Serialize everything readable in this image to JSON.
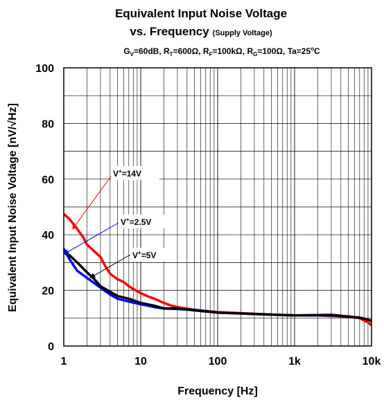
{
  "chart_data": {
    "type": "line",
    "title_line1": "Equivalent Input Noise Voltage",
    "title_line2_main": "vs. Frequency",
    "title_line2_small": "(Supply Voltage)",
    "conditions": [
      {
        "main": "G",
        "sub": "V",
        "rest": "=60dB, "
      },
      {
        "main": "R",
        "sub": "T",
        "rest": "=600Ω, "
      },
      {
        "main": "R",
        "sub": "F",
        "rest": "=100kΩ, "
      },
      {
        "main": "R",
        "sub": "G",
        "rest": "=100Ω, "
      },
      {
        "main": "Ta=25",
        "sup": "o",
        "rest": "C"
      }
    ],
    "xlabel": "Frequency [Hz]",
    "ylabel": "Equivalent Input Noise Voltage [nV/√Hz]",
    "xscale": "log",
    "xlim": [
      1,
      10000
    ],
    "ylim": [
      0,
      100
    ],
    "xticks": [
      {
        "value": 1,
        "label": "1"
      },
      {
        "value": 10,
        "label": "10"
      },
      {
        "value": 100,
        "label": "100"
      },
      {
        "value": 1000,
        "label": "1k"
      },
      {
        "value": 10000,
        "label": "10k"
      }
    ],
    "yticks": [
      {
        "value": 0,
        "label": "0"
      },
      {
        "value": 20,
        "label": "20"
      },
      {
        "value": 40,
        "label": "40"
      },
      {
        "value": 60,
        "label": "60"
      },
      {
        "value": 80,
        "label": "80"
      },
      {
        "value": 100,
        "label": "100"
      }
    ],
    "grid": true,
    "series": [
      {
        "name": "V+=14V",
        "color": "#ff0000",
        "x": [
          1,
          1.2,
          1.5,
          1.8,
          2,
          2.5,
          3,
          3.5,
          4,
          5,
          6,
          7,
          8,
          10,
          12,
          15,
          20,
          25,
          30,
          50,
          100,
          200,
          500,
          1000,
          2000,
          3000,
          5000,
          7000,
          9000,
          10000
        ],
        "y": [
          47.5,
          45.5,
          42,
          39,
          36.5,
          34,
          32,
          28.5,
          26,
          24,
          23,
          21.5,
          20.5,
          19,
          18,
          17,
          15.5,
          14.5,
          14,
          13,
          12.2,
          11.8,
          11.3,
          11,
          11,
          10.8,
          10.5,
          10,
          8.5,
          7.5
        ]
      },
      {
        "name": "V+=2.5V",
        "color": "#0000ff",
        "x": [
          1,
          1.2,
          1.5,
          2,
          3,
          4,
          5,
          7,
          10,
          15,
          20,
          30,
          50,
          100,
          200,
          500,
          1000,
          3000,
          5000,
          7000,
          9000,
          10000
        ],
        "y": [
          35,
          31,
          27,
          24.5,
          21,
          18.5,
          17,
          16,
          15,
          14,
          13.5,
          13.3,
          13,
          12,
          11.7,
          11.3,
          11,
          11,
          10.6,
          10.2,
          9.5,
          9
        ]
      },
      {
        "name": "V+=5V",
        "color": "#000000",
        "x": [
          1,
          1.2,
          1.5,
          2,
          2.5,
          3,
          4,
          5,
          7,
          10,
          15,
          20,
          30,
          50,
          100,
          200,
          500,
          1000,
          3000,
          5000,
          7000,
          9000,
          10000
        ],
        "y": [
          33.5,
          32.5,
          30,
          26.5,
          24,
          21.5,
          19.5,
          18,
          17,
          15.5,
          14.5,
          13.5,
          13.5,
          12.8,
          12,
          11.7,
          11.3,
          11,
          11.2,
          10.6,
          10.2,
          9.5,
          9
        ]
      }
    ],
    "annotations": [
      {
        "base": "V",
        "sup": "+",
        "rest": "=14V",
        "series": "V+=14V"
      },
      {
        "base": "V",
        "sup": "+",
        "rest": "=2.5V",
        "series": "V+=2.5V"
      },
      {
        "base": "V",
        "sup": "+",
        "rest": "=5V",
        "series": "V+=5V"
      }
    ]
  }
}
